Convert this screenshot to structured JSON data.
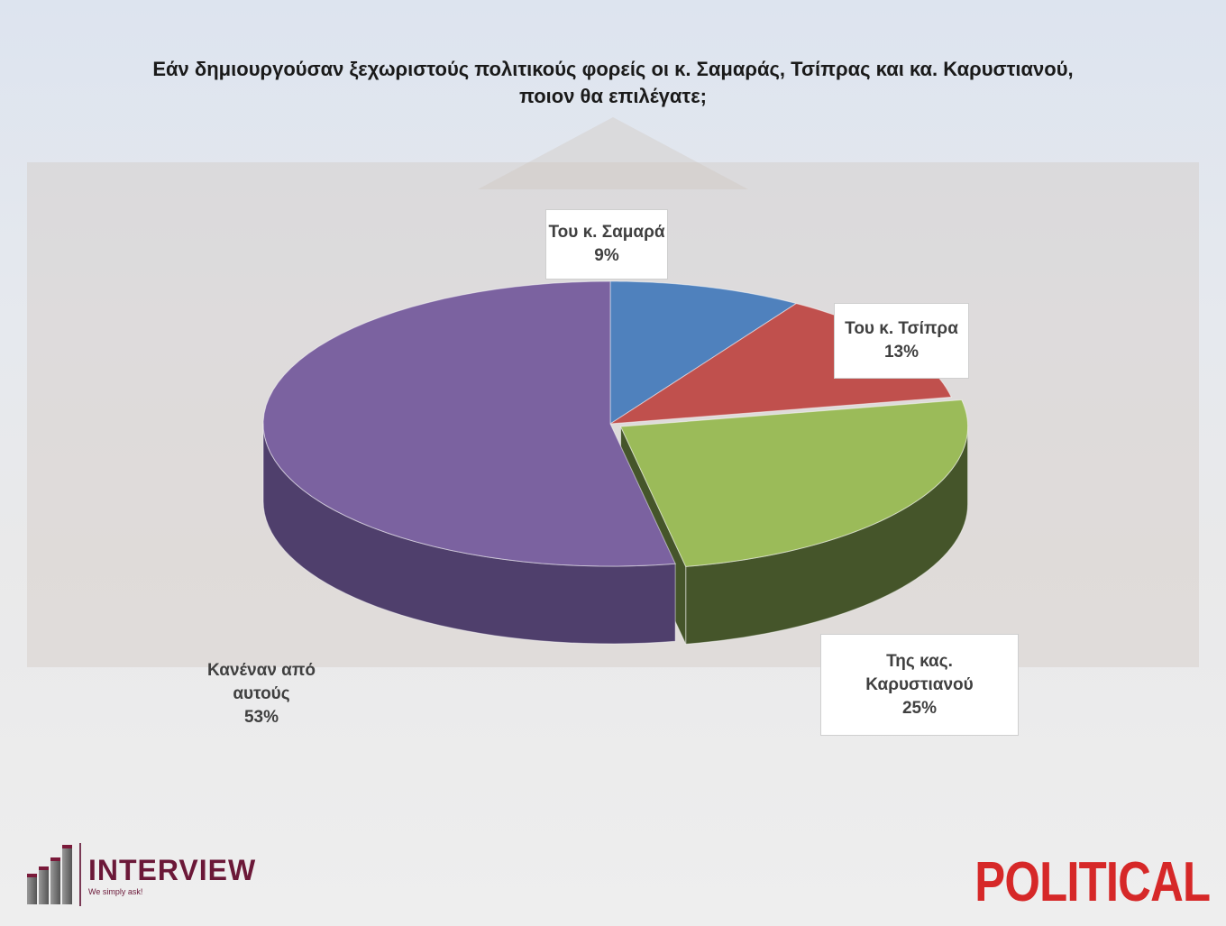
{
  "chart_data": {
    "type": "pie",
    "style": "3d",
    "title": "Εάν δημιουργούσαν ξεχωριστούς πολιτικούς φορείς οι κ. Σαμαράς, Τσίπρας και κα. Καρυστιανού, ποιον θα επιλέγατε;",
    "slices": [
      {
        "label": "Του κ. Σαμαρά",
        "value": 9,
        "value_label": "9%",
        "color": "#4f81bd",
        "side_color": "#34577f"
      },
      {
        "label": "Του κ. Τσίπρα",
        "value": 13,
        "value_label": "13%",
        "color": "#c0504d",
        "side_color": "#7e3432"
      },
      {
        "label": "Της κας. Καρυστιανού",
        "label_lines": [
          "Της κας.",
          "Καρυστιανού"
        ],
        "value": 25,
        "value_label": "25%",
        "color": "#9bbb59",
        "side_color": "#45552a"
      },
      {
        "label": "Κανέναν από αυτούς",
        "label_lines": [
          "Κανέναν από",
          "αυτούς"
        ],
        "value": 53,
        "value_label": "53%",
        "color": "#7b62a0",
        "side_color": "#4f3f6c"
      }
    ],
    "start_angle": "top",
    "direction": "clockwise"
  },
  "logos": {
    "interview": {
      "name": "INTERVIEW",
      "tagline": "We simply ask!",
      "color": "#6b1838"
    },
    "political": {
      "name": "POLITICAL",
      "color": "#d62828"
    }
  }
}
